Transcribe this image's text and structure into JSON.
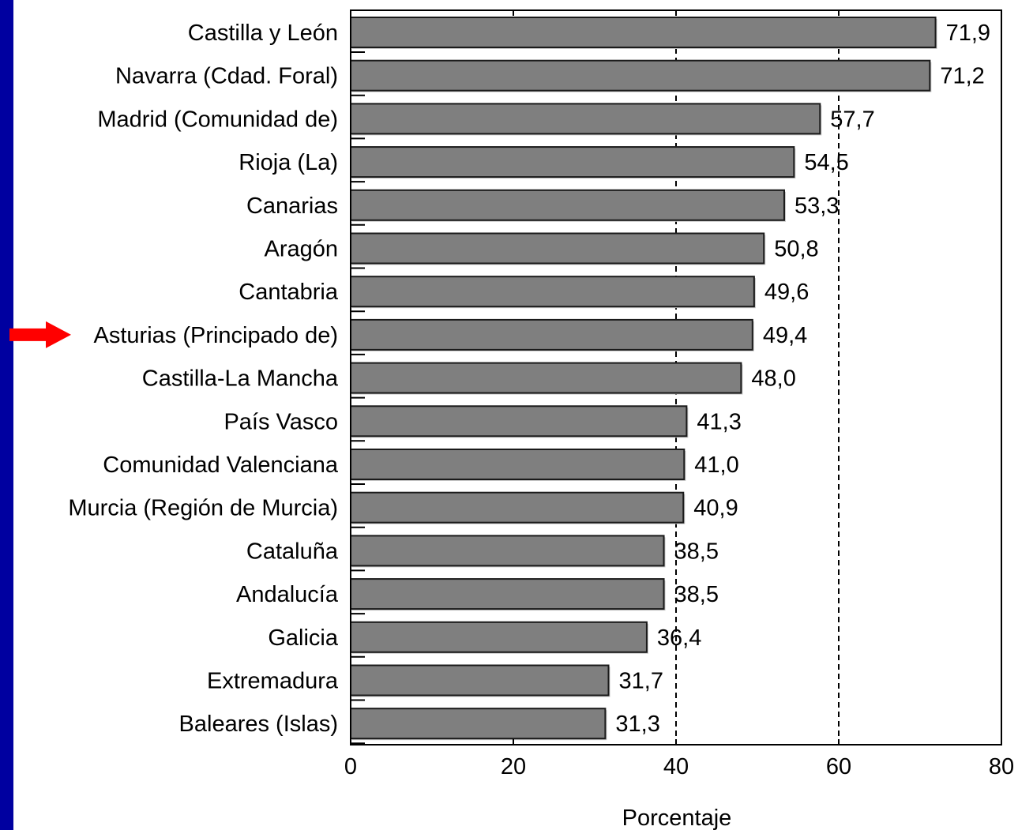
{
  "colors": {
    "left_bar": "#0000a0",
    "bar_fill": "#7f7f7f",
    "bar_stroke": "#1a1a1a",
    "arrow": "#ff0000"
  },
  "highlight_arrow_icon": "red-right-arrow-icon",
  "chart_data": {
    "type": "bar",
    "orientation": "horizontal",
    "categories": [
      "Castilla y León",
      "Navarra (Cdad. Foral)",
      "Madrid (Comunidad de)",
      "Rioja (La)",
      "Canarias",
      "Aragón",
      "Cantabria",
      "Asturias (Principado de)",
      "Castilla-La Mancha",
      "País Vasco",
      "Comunidad Valenciana",
      "Murcia (Región de Murcia)",
      "Cataluña",
      "Andalucía",
      "Galicia",
      "Extremadura",
      "Baleares (Islas)"
    ],
    "values": [
      71.9,
      71.2,
      57.7,
      54.5,
      53.3,
      50.8,
      49.6,
      49.4,
      48.0,
      41.3,
      41.0,
      40.9,
      38.5,
      38.5,
      36.4,
      31.7,
      31.3
    ],
    "value_labels": [
      "71,9",
      "71,2",
      "57,7",
      "54,5",
      "53,3",
      "50,8",
      "49,6",
      "49,4",
      "48,0",
      "41,3",
      "41,0",
      "40,9",
      "38,5",
      "38,5",
      "36,4",
      "31,7",
      "31,3"
    ],
    "xlabel": "Porcentaje",
    "ylabel": "",
    "xlim": [
      0,
      80
    ],
    "xticks": [
      0,
      20,
      40,
      60,
      80
    ],
    "reference_lines": [
      40,
      60
    ],
    "highlighted_category": "Asturias (Principado de)",
    "grid": false,
    "legend": "none"
  }
}
